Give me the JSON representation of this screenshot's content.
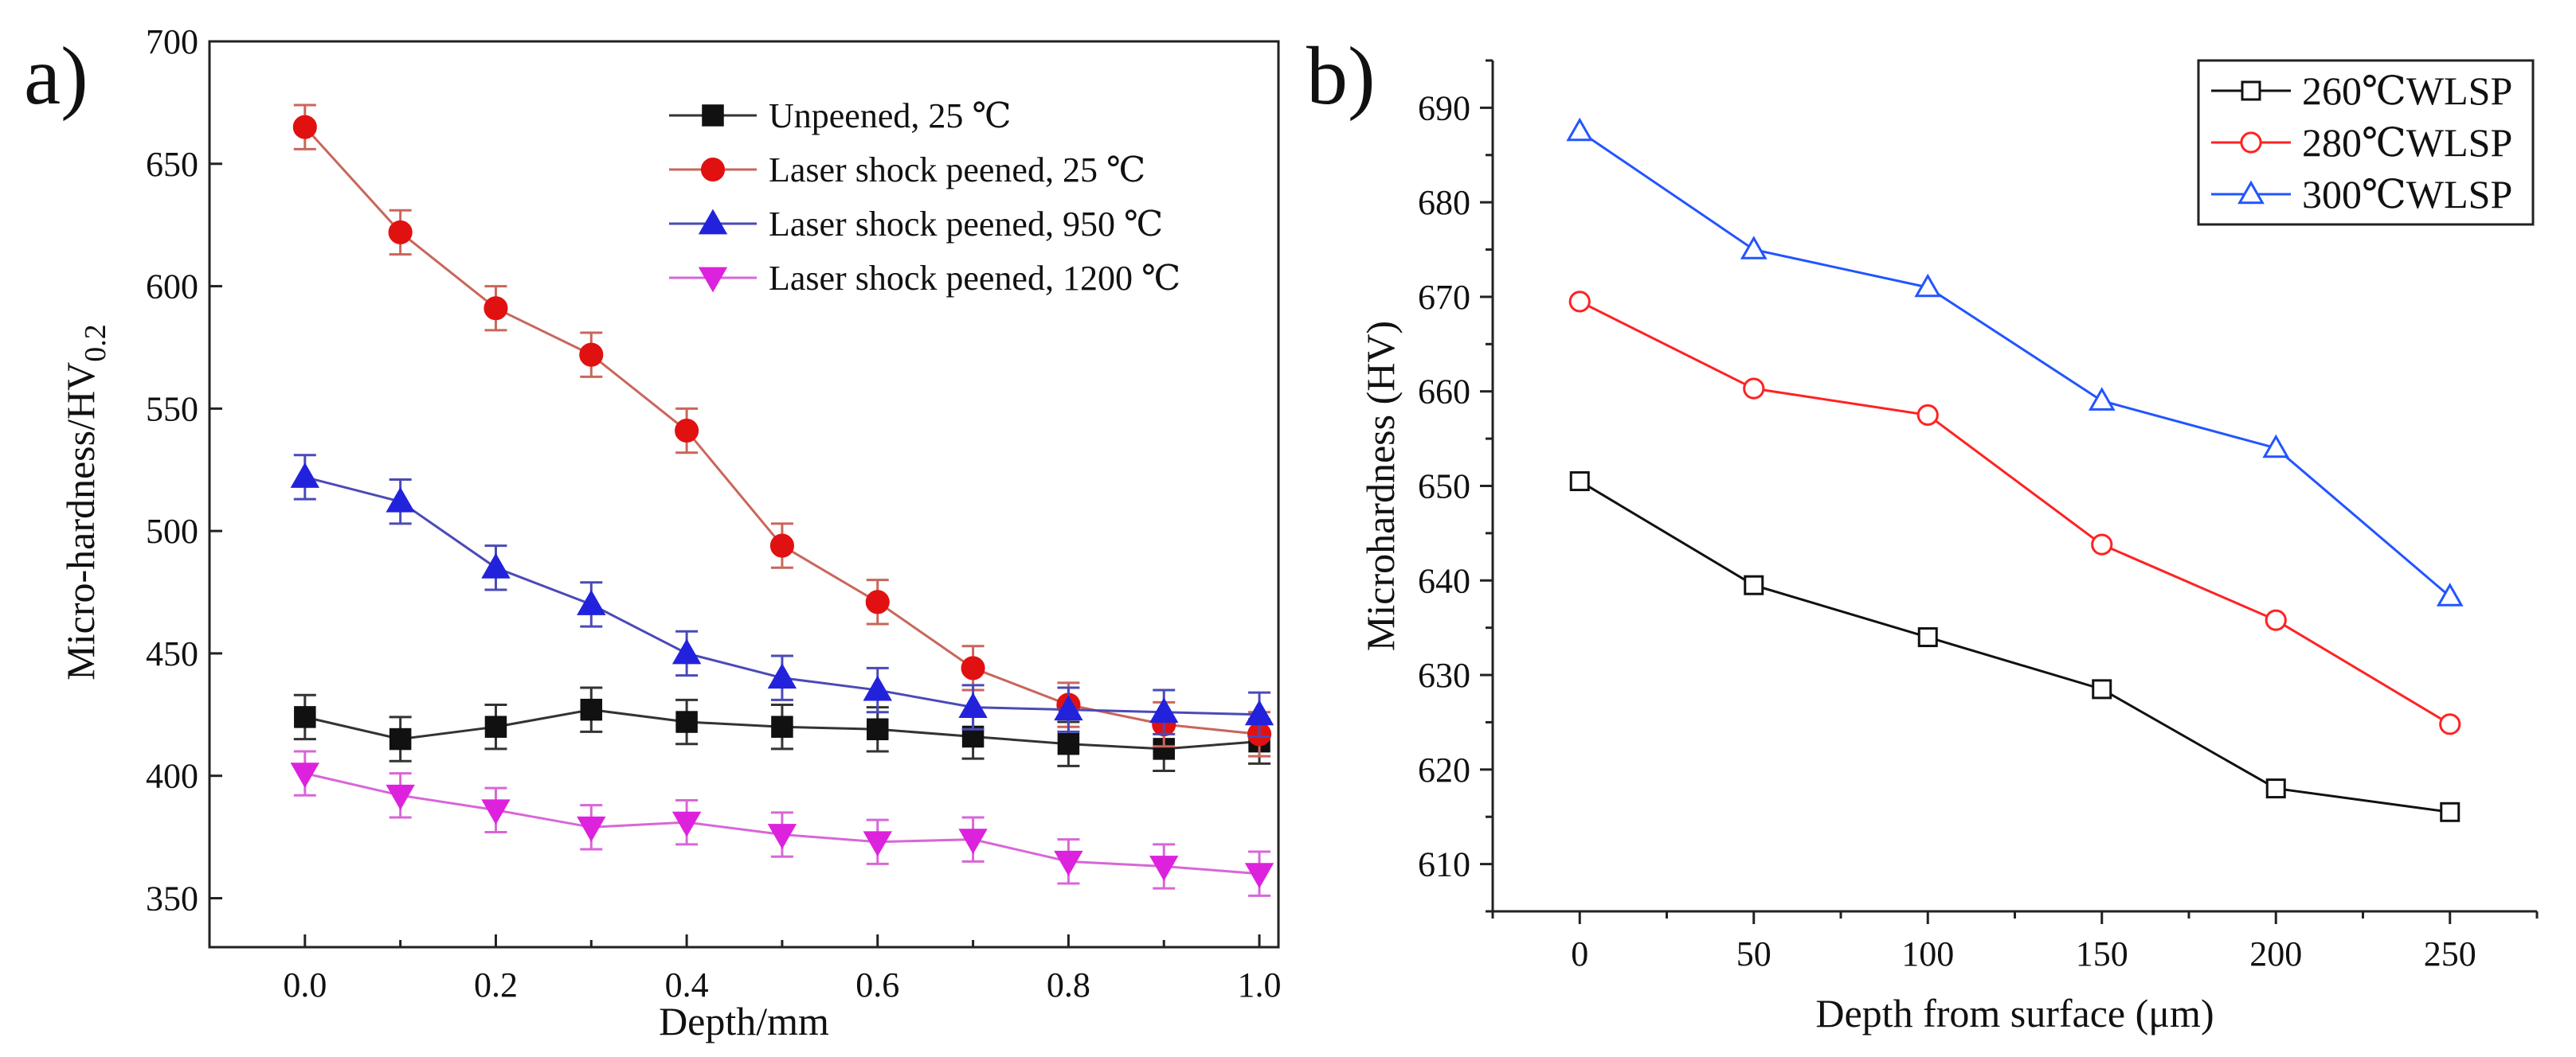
{
  "figure": {
    "panel_a": "a)",
    "panel_b": "b)"
  },
  "chart_data": [
    {
      "type": "line",
      "panel": "a)",
      "title": "",
      "xlabel": "Depth/mm",
      "ylabel": "Micro-hardness/HV",
      "ylabel_sub": "0.2",
      "xlim": [
        -0.1,
        1.02
      ],
      "ylim": [
        330,
        700
      ],
      "xticks": [
        "0.0",
        "0.2",
        "0.4",
        "0.6",
        "0.8",
        "1.0"
      ],
      "xtick_values": [
        0,
        0.2,
        0.4,
        0.6,
        0.8,
        1.0
      ],
      "yticks": [
        "350",
        "400",
        "450",
        "500",
        "550",
        "600",
        "650",
        "700"
      ],
      "ytick_values": [
        350,
        400,
        450,
        500,
        550,
        600,
        650,
        700
      ],
      "x": [
        0.0,
        0.1,
        0.2,
        0.3,
        0.4,
        0.5,
        0.6,
        0.7,
        0.8,
        0.9,
        1.0
      ],
      "error_bar": 9,
      "legend_position": "top-right",
      "series": [
        {
          "name": "Unpeened, 25 ℃",
          "marker": "square",
          "color": "#111111",
          "line_color": "#333333",
          "values": [
            424,
            415,
            420,
            427,
            422,
            420,
            419,
            416,
            413,
            411,
            414
          ]
        },
        {
          "name": "Laser shock peened, 25 ℃",
          "marker": "circle",
          "color": "#e11111",
          "line_color": "#c9665a",
          "values": [
            665,
            622,
            591,
            572,
            541,
            494,
            471,
            444,
            429,
            421,
            417
          ]
        },
        {
          "name": "Laser shock peened, 950 ℃",
          "marker": "triangle-up",
          "color": "#2222dd",
          "line_color": "#4a4ab8",
          "values": [
            522,
            512,
            485,
            470,
            450,
            440,
            435,
            428,
            427,
            426,
            425
          ]
        },
        {
          "name": "Laser shock peened, 1200 ℃",
          "marker": "triangle-down",
          "color": "#dd22dd",
          "line_color": "#d866d8",
          "values": [
            401,
            392,
            386,
            379,
            381,
            376,
            373,
            374,
            365,
            363,
            360
          ]
        }
      ]
    },
    {
      "type": "line",
      "panel": "b)",
      "title": "",
      "xlabel": "Depth from surface (μm)",
      "ylabel": "Microhardness (HV)",
      "xlim": [
        -25,
        275
      ],
      "ylim": [
        605,
        695
      ],
      "xticks": [
        "0",
        "50",
        "100",
        "150",
        "200",
        "250"
      ],
      "xtick_values": [
        0,
        50,
        100,
        150,
        200,
        250
      ],
      "yticks": [
        "610",
        "620",
        "630",
        "640",
        "650",
        "660",
        "670",
        "680",
        "690"
      ],
      "ytick_values": [
        610,
        620,
        630,
        640,
        650,
        660,
        670,
        680,
        690
      ],
      "x": [
        0,
        50,
        100,
        150,
        200,
        250
      ],
      "legend_position": "top-right",
      "series": [
        {
          "name": "260℃WLSP",
          "marker": "open-square",
          "color": "#111111",
          "values": [
            650.5,
            639.5,
            634,
            628.5,
            618,
            615.5
          ]
        },
        {
          "name": "280℃WLSP",
          "marker": "open-circle",
          "color": "#ff2222",
          "values": [
            669.5,
            660.3,
            657.5,
            643.8,
            635.8,
            624.8
          ]
        },
        {
          "name": "300℃WLSP",
          "marker": "open-triangle-up",
          "color": "#2255ff",
          "values": [
            687.5,
            675,
            671,
            659,
            654,
            638.3
          ]
        }
      ]
    }
  ]
}
